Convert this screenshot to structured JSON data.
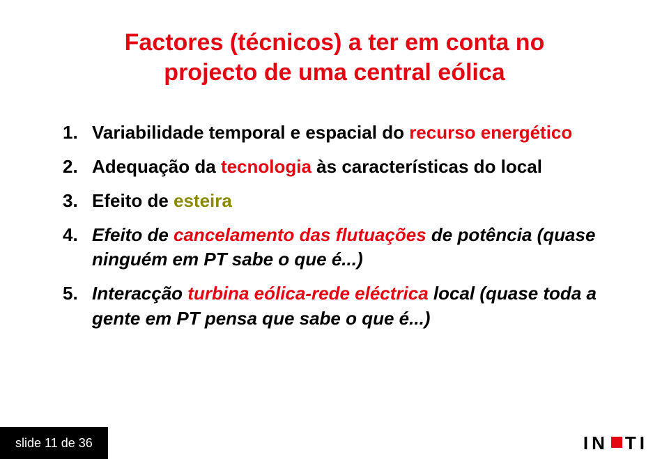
{
  "title": {
    "line1": "Factores (técnicos) a ter em conta no",
    "line2": "projecto de uma central eólica",
    "color": "#e30613",
    "fontsize": 34
  },
  "list": {
    "fontsize": 26,
    "text_color": "#000000",
    "accent_color": "#e30613",
    "highlight_color": "#8a8a00",
    "items": [
      {
        "num": "1.",
        "parts": [
          {
            "text": "Variabilidade temporal e espacial do ",
            "style": "bold"
          },
          {
            "text": "recurso energético",
            "style": "accent"
          }
        ]
      },
      {
        "num": "2.",
        "parts": [
          {
            "text": "Adequação da ",
            "style": "bold"
          },
          {
            "text": "tecnologia",
            "style": "accent"
          },
          {
            "text": " às características do local",
            "style": "bold"
          }
        ]
      },
      {
        "num": "3.",
        "parts": [
          {
            "text": "Efeito de ",
            "style": "bold"
          },
          {
            "text": "esteira",
            "style": "highlight"
          }
        ]
      },
      {
        "num": "4.",
        "parts": [
          {
            "text": "Efeito de ",
            "style": "bold-italic"
          },
          {
            "text": "cancelamento das flutuações",
            "style": "accent-italic"
          },
          {
            "text": " de potência (quase ninguém em PT sabe o que é...)",
            "style": "bold-italic"
          }
        ]
      },
      {
        "num": "5.",
        "parts": [
          {
            "text": "Interacção ",
            "style": "bold-italic"
          },
          {
            "text": "turbina eólica-rede eléctrica",
            "style": "accent-italic"
          },
          {
            "text": " local (quase toda a gente em PT pensa que sabe o que é...)",
            "style": "bold-italic"
          }
        ]
      }
    ]
  },
  "footer": {
    "slide_text": "slide 11 de 36",
    "logo_before": "IN",
    "logo_after": "TI",
    "bg_color": "#000000",
    "text_color": "#ffffff"
  },
  "background_color": "#ffffff"
}
